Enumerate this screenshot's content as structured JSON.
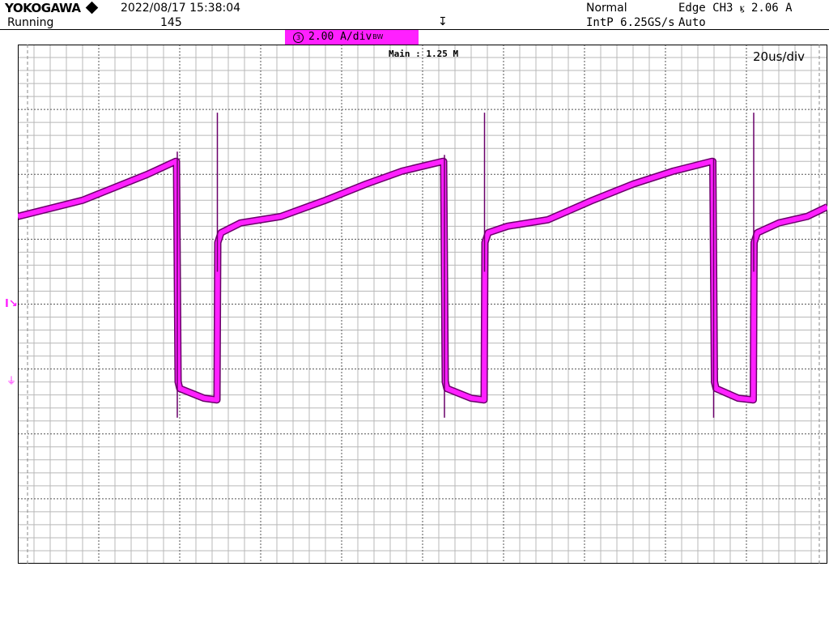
{
  "header": {
    "brand": "YOKOGAWA",
    "datetime": "2022/08/17 15:38:04",
    "status": "Running",
    "acq_count": "145",
    "mode": "Normal",
    "sample": "IntP 6.25GS/s",
    "trigger": "Edge CH3 ⳤ 2.06 A",
    "trigger_mode": "Auto",
    "trig_pos_icon": "↧"
  },
  "channel": {
    "badge_num": "3",
    "scale": "2.00 A/div",
    "bw_icon": "BW",
    "color": "#ff20ff"
  },
  "display": {
    "zoom": "Main : 1.25 M",
    "time_div": "20us/div",
    "level_marker": "I↘",
    "ground_marker": "⏚"
  },
  "chart_data": {
    "type": "line",
    "title": "",
    "xlabel": "",
    "ylabel": "",
    "x_unit": "us",
    "y_unit": "A",
    "xlim": [
      -100,
      100
    ],
    "ylim": [
      -6.4,
      9.6
    ],
    "grid": true,
    "x_divisions": 10,
    "y_divisions": 8,
    "series": [
      {
        "color": "#ff20ff",
        "points": [
          [
            -100,
            4.3
          ],
          [
            -84,
            4.8
          ],
          [
            -68,
            5.6
          ],
          [
            -61,
            6.0
          ],
          [
            -60.8,
            6.0
          ],
          [
            -60.4,
            -0.8
          ],
          [
            -60.0,
            -1.0
          ],
          [
            -54,
            -1.3
          ],
          [
            -51,
            -1.35
          ],
          [
            -50.8,
            -1.35
          ],
          [
            -50.6,
            3.5
          ],
          [
            -49.8,
            3.8
          ],
          [
            -45,
            4.1
          ],
          [
            -35,
            4.3
          ],
          [
            -24,
            4.8
          ],
          [
            -14,
            5.3
          ],
          [
            -5,
            5.7
          ],
          [
            5,
            6.0
          ],
          [
            5.2,
            6.0
          ],
          [
            5.6,
            -0.8
          ],
          [
            6.0,
            -1.0
          ],
          [
            12,
            -1.3
          ],
          [
            15,
            -1.35
          ],
          [
            15.2,
            -1.35
          ],
          [
            15.4,
            3.5
          ],
          [
            16.2,
            3.8
          ],
          [
            21,
            4.0
          ],
          [
            31,
            4.2
          ],
          [
            42,
            4.8
          ],
          [
            52,
            5.3
          ],
          [
            62,
            5.7
          ],
          [
            71.5,
            6.0
          ],
          [
            71.7,
            6.0
          ],
          [
            72.1,
            -0.8
          ],
          [
            72.5,
            -1.0
          ],
          [
            78,
            -1.3
          ],
          [
            81.5,
            -1.35
          ],
          [
            81.7,
            -1.35
          ],
          [
            81.9,
            3.5
          ],
          [
            82.7,
            3.8
          ],
          [
            88,
            4.1
          ],
          [
            95,
            4.3
          ],
          [
            100,
            4.6
          ]
        ]
      }
    ]
  }
}
